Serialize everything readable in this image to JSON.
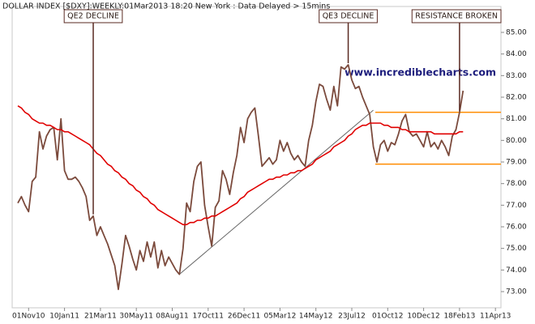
{
  "chart_data": {
    "type": "line",
    "title": "DOLLAR INDEX [$DXY]:WEEKLY:01Mar2013 18:20 New York : Data Delayed > 15mins",
    "watermark": "www.incrediblecharts.com",
    "categories": [
      null,
      null,
      null,
      "01Nov10",
      null,
      null,
      null,
      null,
      null,
      null,
      null,
      null,
      null,
      "10Jan11",
      null,
      null,
      null,
      null,
      null,
      null,
      null,
      null,
      null,
      "21Mar11",
      null,
      null,
      null,
      null,
      null,
      null,
      null,
      null,
      null,
      "30May11",
      null,
      null,
      null,
      null,
      null,
      null,
      null,
      null,
      null,
      "08Aug11",
      null,
      null,
      null,
      null,
      null,
      null,
      null,
      null,
      null,
      "17Oct11",
      null,
      null,
      null,
      null,
      null,
      null,
      null,
      null,
      null,
      "26Dec11",
      null,
      null,
      null,
      null,
      null,
      null,
      null,
      null,
      null,
      "05Mar12",
      null,
      null,
      null,
      null,
      null,
      null,
      null,
      null,
      null,
      "14May12",
      null,
      null,
      null,
      null,
      null,
      null,
      null,
      null,
      null,
      "23Jul12",
      null,
      null,
      null,
      null,
      null,
      null,
      null,
      null,
      null,
      "01Oct12",
      null,
      null,
      null,
      null,
      null,
      null,
      null,
      null,
      null,
      "10Dec12",
      null,
      null,
      null,
      null,
      null,
      null,
      null,
      null,
      null,
      "18Feb13",
      null,
      null,
      null,
      null,
      null,
      null,
      null,
      null,
      null,
      "11Apr13"
    ],
    "series": [
      {
        "color": "#7b4a3c",
        "values": [
          77.1,
          77.4,
          77.0,
          76.7,
          78.1,
          78.3,
          80.4,
          79.6,
          80.2,
          80.5,
          80.6,
          79.1,
          81.0,
          78.6,
          78.2,
          78.2,
          78.3,
          78.1,
          77.8,
          77.4,
          76.3,
          76.5,
          75.6,
          76.0,
          75.6,
          75.2,
          74.7,
          74.2,
          73.1,
          74.3,
          75.6,
          75.1,
          74.5,
          74.0,
          74.9,
          74.4,
          75.3,
          74.6,
          75.3,
          74.1,
          74.9,
          74.2,
          74.6,
          74.3,
          74.0,
          73.8,
          75.0,
          77.1,
          76.7,
          78.1,
          78.8,
          79.0,
          77.0,
          76.0,
          75.1,
          76.9,
          77.2,
          78.6,
          78.2,
          77.5,
          78.5,
          79.3,
          80.6,
          79.9,
          81.0,
          81.3,
          81.5,
          80.2,
          78.8,
          79.0,
          79.2,
          78.9,
          79.1,
          80.0,
          79.5,
          79.9,
          79.4,
          79.1,
          79.3,
          79.0,
          78.8,
          80.0,
          80.7,
          81.8,
          82.6,
          82.5,
          81.9,
          81.4,
          82.5,
          81.6,
          83.4,
          83.3,
          83.5,
          82.8,
          82.4,
          82.5,
          82.0,
          81.6,
          81.2,
          79.7,
          79.0,
          79.8,
          80.0,
          79.5,
          79.9,
          79.8,
          80.3,
          80.9,
          81.2,
          80.4,
          80.2,
          80.3,
          80.0,
          79.7,
          80.4,
          79.7,
          79.9,
          79.6,
          80.0,
          79.7,
          79.3,
          80.2,
          80.5,
          81.3,
          82.3,
          null,
          null,
          null,
          null,
          null,
          null,
          null,
          null,
          null
        ]
      },
      {
        "color": "#e00000",
        "values": [
          81.6,
          81.5,
          81.3,
          81.2,
          81.0,
          80.9,
          80.8,
          80.8,
          80.7,
          80.7,
          80.6,
          80.5,
          80.5,
          80.4,
          80.4,
          80.3,
          80.2,
          80.1,
          80.0,
          79.9,
          79.8,
          79.6,
          79.4,
          79.3,
          79.1,
          78.9,
          78.8,
          78.6,
          78.5,
          78.3,
          78.2,
          78.0,
          77.9,
          77.7,
          77.6,
          77.4,
          77.3,
          77.1,
          77.0,
          76.8,
          76.7,
          76.6,
          76.5,
          76.4,
          76.3,
          76.2,
          76.1,
          76.1,
          76.2,
          76.2,
          76.3,
          76.3,
          76.4,
          76.4,
          76.5,
          76.5,
          76.6,
          76.7,
          76.8,
          76.9,
          77.0,
          77.1,
          77.3,
          77.4,
          77.6,
          77.7,
          77.8,
          77.9,
          78.0,
          78.1,
          78.2,
          78.2,
          78.3,
          78.3,
          78.4,
          78.4,
          78.5,
          78.5,
          78.6,
          78.6,
          78.7,
          78.8,
          78.9,
          79.1,
          79.2,
          79.3,
          79.4,
          79.5,
          79.7,
          79.8,
          79.9,
          80.0,
          80.2,
          80.3,
          80.5,
          80.6,
          80.7,
          80.7,
          80.8,
          80.8,
          80.8,
          80.8,
          80.7,
          80.7,
          80.6,
          80.6,
          80.6,
          80.5,
          80.5,
          80.4,
          80.4,
          80.4,
          80.4,
          80.4,
          80.4,
          80.4,
          80.3,
          80.3,
          80.3,
          80.3,
          80.3,
          80.3,
          80.3,
          80.4,
          80.4,
          null,
          null,
          null,
          null,
          null,
          null,
          null,
          null,
          null
        ]
      }
    ],
    "trendline": {
      "color": "#666666",
      "values": [
        73.8,
        81.4
      ]
    },
    "reference_lines": [
      {
        "value": 81.3,
        "color": "#ff8c00"
      },
      {
        "value": 78.9,
        "color": "#ff8c00"
      }
    ],
    "annotations": [
      {
        "text": "QE2 DECLINE"
      },
      {
        "text": "QE3 DECLINE"
      },
      {
        "text": "RESISTANCE BROKEN"
      }
    ],
    "ylim": [
      72.25,
      86.2
    ],
    "yticks": [
      {
        "value": 73,
        "label": "73.00"
      },
      {
        "value": 74,
        "label": "74.00"
      },
      {
        "value": 75,
        "label": "75.00"
      },
      {
        "value": 76,
        "label": "76.00"
      },
      {
        "value": 77,
        "label": "77.00"
      },
      {
        "value": 78,
        "label": "78.00"
      },
      {
        "value": 79,
        "label": "79.00"
      },
      {
        "value": 80,
        "label": "80.00"
      },
      {
        "value": 81,
        "label": "81.00"
      },
      {
        "value": 82,
        "label": "82.00"
      },
      {
        "value": 83,
        "label": "83.00"
      },
      {
        "value": 84,
        "label": "84.00"
      },
      {
        "value": 85,
        "label": "85.00"
      }
    ],
    "grid": false
  }
}
